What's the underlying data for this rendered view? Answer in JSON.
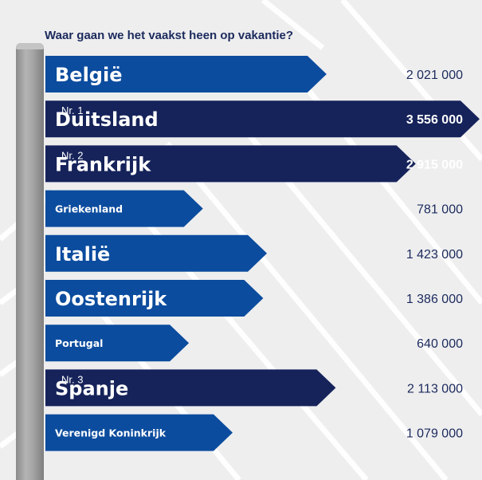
{
  "chart_data": {
    "type": "bar",
    "title": "Waar gaan we het vaakst heen op vakantie?",
    "categories": [
      "België",
      "Duitsland",
      "Frankrijk",
      "Griekenland",
      "Italië",
      "Oostenrijk",
      "Portugal",
      "Spanje",
      "Verenigd Koninkrijk"
    ],
    "values": [
      2021000,
      3556000,
      2915000,
      781000,
      1423000,
      1386000,
      640000,
      2113000,
      1079000
    ],
    "value_labels": [
      "2 021 000",
      "3 556 000",
      "2 915 000",
      "781 000",
      "1 423 000",
      "1 386 000",
      "640 000",
      "2 113 000",
      "1 079 000"
    ],
    "ranks": [
      "",
      "Nr. 1",
      "Nr. 2",
      "",
      "",
      "",
      "",
      "Nr. 3",
      ""
    ],
    "emphasis": [
      "large",
      "large",
      "large",
      "small",
      "large",
      "large",
      "small",
      "large",
      "small"
    ],
    "colors": {
      "bar": "#0b4c9e",
      "bar_top3": "#16235a",
      "text_on_bar": "#ffffff",
      "value_text": "#1b2a5c",
      "background": "#eeeeef",
      "track_lines": "#ffffff"
    },
    "xlim": [
      0,
      3556000
    ],
    "grid": false,
    "legend": "none"
  }
}
